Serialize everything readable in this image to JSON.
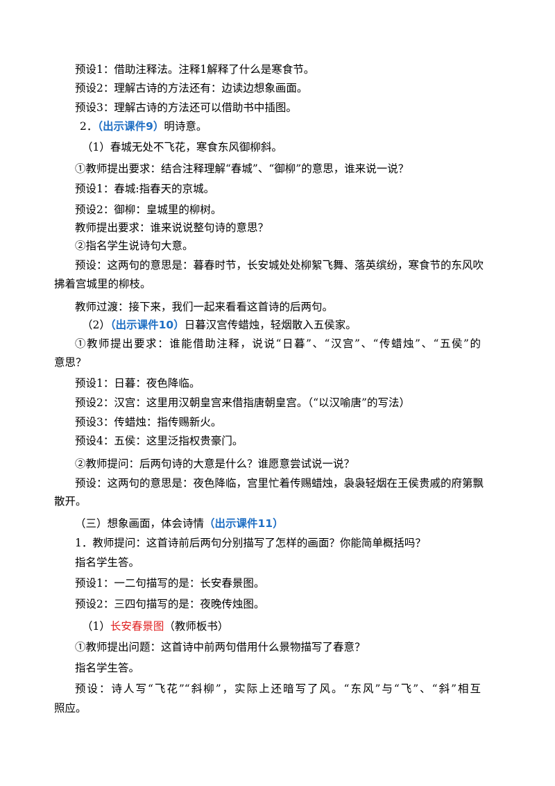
{
  "lines": [
    [
      "预设1：借助注释法。注释1解释了什么是寒食节。"
    ],
    [
      "预设2：理解古诗的方法还有：边读边想象画面。"
    ],
    [
      "预设3：理解古诗的方法还可以借助书中插图。"
    ],
    [
      "2．",
      "（出示课件9）",
      "明诗意。"
    ],
    [
      "（1）春城无处不飞花，寒食东风御柳斜。"
    ],
    [
      "①教师提出要求：结合注释理解“春城”、“御柳”的意思，谁来说一说？"
    ],
    [
      "预设1：春城:指春天的京城。"
    ],
    [
      "预设2：御柳：皇城里的柳树。"
    ],
    [
      "教师提出要求：谁来说说整句诗的意思？"
    ],
    [
      "②指名学生说诗句大意。"
    ],
    [
      "预设：这两句的意思是：暮春时节，长安城处处柳絮飞舞、落英缤纷，寒食节的东风吹"
    ],
    [
      "拂着宫城里的柳枝。"
    ],
    [
      "教师过渡：接下来，我们一起来看看这首诗的后两句。"
    ],
    [
      "（2）",
      "（出示课件10）",
      "日暮汉宫传蜡烛，轻烟散入五侯家。"
    ],
    [
      "①教师提出要求：谁能借助注释，说说“日暮”、“汉宫”、“传蜡烛”、“五侯”的"
    ],
    [
      "意思？"
    ],
    [
      "预设1：日暮：夜色降临。"
    ],
    [
      "预设2：汉宫：这里用汉朝皇宫来借指唐朝皇宫。（“以汉喻唐”的写法）"
    ],
    [
      "预设3：传蜡烛：指传赐新火。"
    ],
    [
      "预设4：五侯：这里泛指权贵豪门。"
    ],
    [
      "②教师提问：后两句诗的大意是什么？谁愿意尝试说一说？"
    ],
    [
      "预设：这两句的意思是：夜色降临，宫里忙着传赐蜡烛，袅袅轻烟在王侯贵戚的府第飘"
    ],
    [
      "散开。"
    ],
    [
      "（三）想象画面，体会诗情",
      "（出示课件11）"
    ],
    [
      "1．教师提问：这首诗前后两句分别描写了怎样的画面？你能简单概括吗？"
    ],
    [
      "指名学生答。"
    ],
    [
      "预设1：一二句描写的是：长安春景图。"
    ],
    [
      "预设2：三四句描写的是：夜晚传烛图。"
    ],
    [
      "（1）",
      "长安春景图",
      "（教师板书）"
    ],
    [
      "①教师提出问题：这首诗中前两句借用什么景物描写了春意？"
    ],
    [
      "指名学生答。"
    ],
    [
      "预设：诗人写“飞花”“斜柳”，实际上还暗写了风。“东风”与“飞”、“斜”相互"
    ],
    [
      "照应。"
    ]
  ]
}
